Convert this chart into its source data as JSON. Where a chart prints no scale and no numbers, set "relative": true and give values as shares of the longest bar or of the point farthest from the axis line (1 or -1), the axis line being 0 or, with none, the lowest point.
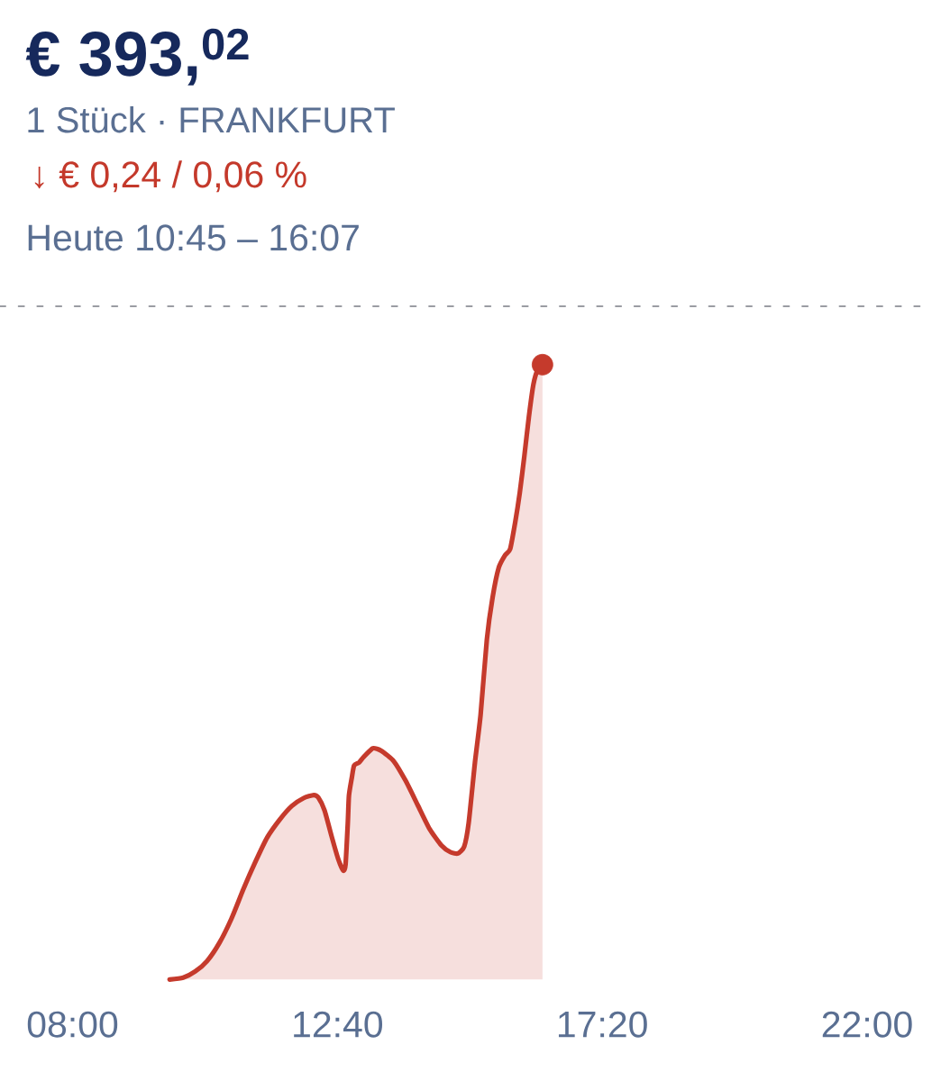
{
  "chart_data": {
    "type": "area",
    "title": "€ 393,$^{02}$",
    "subtitle": "1 Stück · FRANKFURT",
    "annotations": [
      "↓ € 0,24 / 0,06 %",
      "Heute 10:45 – 16:07"
    ],
    "relative": true,
    "xlim": [
      8,
      22
    ],
    "xticks": [
      {
        "value": 8,
        "label": "08:00"
      },
      {
        "value": 12.667,
        "label": "12:40"
      },
      {
        "value": 17.333,
        "label": "17:20"
      },
      {
        "value": 22,
        "label": "22:00"
      }
    ],
    "tick_labels": "x",
    "series": [
      {
        "color": "#c53a2c",
        "x": [
          9.71,
          9.95,
          10.16,
          10.37,
          10.59,
          10.8,
          11.01,
          11.22,
          11.43,
          11.65,
          11.86,
          12.07,
          12.25,
          12.33,
          12.44,
          12.57,
          12.68,
          12.77,
          12.81,
          12.85,
          12.87,
          12.92,
          12.96,
          13.05,
          13.13,
          13.29,
          13.44,
          13.66,
          13.87,
          14.08,
          14.29,
          14.5,
          14.66,
          14.79,
          14.9,
          14.98,
          15.09,
          15.19,
          15.3,
          15.4,
          15.51,
          15.62,
          15.71,
          15.8,
          15.88,
          15.96,
          16.04,
          16.12,
          16.2,
          16.28
        ],
        "values": [
          0.0,
          0.003,
          0.013,
          0.03,
          0.06,
          0.099,
          0.147,
          0.191,
          0.231,
          0.26,
          0.282,
          0.295,
          0.3,
          0.296,
          0.275,
          0.231,
          0.196,
          0.177,
          0.187,
          0.255,
          0.299,
          0.328,
          0.348,
          0.353,
          0.362,
          0.376,
          0.372,
          0.355,
          0.323,
          0.284,
          0.245,
          0.218,
          0.207,
          0.205,
          0.216,
          0.255,
          0.353,
          0.431,
          0.553,
          0.621,
          0.67,
          0.69,
          0.7,
          0.744,
          0.792,
          0.851,
          0.915,
          0.968,
          0.993,
          1.0
        ]
      },
      {
        "type": "scatter",
        "color": "#c53a2c",
        "marker": "circle",
        "x": [
          16.28
        ],
        "values": [
          1.0
        ]
      }
    ],
    "ref_lines": [
      {
        "axis": "y",
        "value": 1.095,
        "color": "#9a9ca3",
        "line_style": "dashed"
      }
    ]
  }
}
